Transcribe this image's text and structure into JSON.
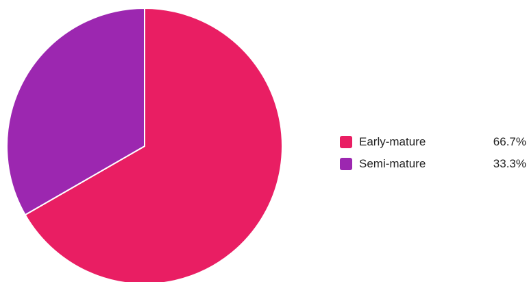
{
  "chart_data": {
    "type": "pie",
    "title": "",
    "categories": [
      "Early-mature",
      "Semi-mature"
    ],
    "values": [
      66.7,
      33.3
    ],
    "value_labels": [
      "66.7%",
      "33.3%"
    ],
    "colors": [
      "#e91e63",
      "#9c27b0"
    ],
    "legend_position": "right"
  }
}
